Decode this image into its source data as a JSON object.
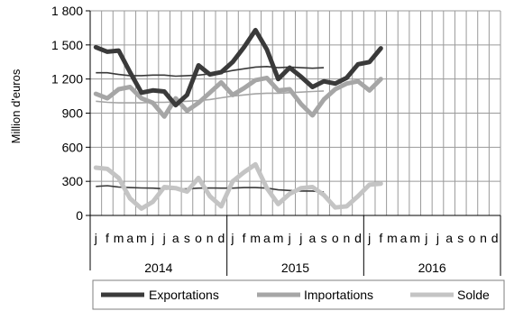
{
  "chart_data": {
    "type": "line",
    "ylabel": "Million d'euros",
    "ylim": [
      0,
      1800
    ],
    "yticks": [
      0,
      300,
      600,
      900,
      1200,
      1500,
      1800
    ],
    "ytick_labels": [
      "0",
      "300",
      "600",
      "900",
      "1 200",
      "1 500",
      "1 800"
    ],
    "month_labels": [
      "j",
      "f",
      "m",
      "a",
      "m",
      "j",
      "j",
      "a",
      "s",
      "o",
      "n",
      "d",
      "j",
      "f",
      "m",
      "a",
      "m",
      "j",
      "j",
      "a",
      "s",
      "o",
      "n",
      "d",
      "j",
      "f",
      "m",
      "a",
      "m",
      "j",
      "j",
      "a",
      "s",
      "o",
      "n",
      "d"
    ],
    "years": [
      "2014",
      "2015",
      "2016"
    ],
    "grid": true,
    "legend_position": "bottom",
    "colors": {
      "exportations": "#3a3a3a",
      "importations": "#a6a6a6",
      "solde": "#c4c4c4",
      "trend_export": "#3a3a3a",
      "trend_import": "#a6a6a6",
      "trend_solde": "#3a3a3a",
      "grid": "#9a9a9a"
    },
    "series": [
      {
        "name": "Exportations",
        "values": [
          1480,
          1440,
          1450,
          1260,
          1080,
          1100,
          1090,
          970,
          1060,
          1320,
          1240,
          1260,
          1350,
          1480,
          1630,
          1460,
          1200,
          1300,
          1220,
          1130,
          1180,
          1160,
          1210,
          1330,
          1350,
          1470
        ]
      },
      {
        "name": "Importations",
        "values": [
          1070,
          1030,
          1110,
          1130,
          1030,
          990,
          870,
          1030,
          920,
          990,
          1080,
          1170,
          1060,
          1120,
          1190,
          1210,
          1100,
          1110,
          980,
          880,
          1020,
          1110,
          1160,
          1180,
          1100,
          1200
        ]
      },
      {
        "name": "Solde",
        "values": [
          420,
          410,
          330,
          150,
          60,
          120,
          250,
          240,
          210,
          330,
          170,
          80,
          300,
          380,
          450,
          240,
          100,
          190,
          240,
          250,
          180,
          70,
          80,
          170,
          270,
          280
        ]
      }
    ],
    "trend_series": [
      {
        "values": [
          1255,
          1255,
          1240,
          1230,
          1230,
          1235,
          1235,
          1225,
          1230,
          1235,
          1245,
          1255,
          1275,
          1290,
          1305,
          1310,
          1300,
          1305,
          1300,
          1295,
          1300
        ]
      },
      {
        "values": [
          1005,
          995,
          990,
          990,
          990,
          995,
          995,
          1000,
          1005,
          1010,
          1020,
          1035,
          1050,
          1060,
          1070,
          1075,
          1075,
          1080,
          1085,
          1090,
          1095
        ]
      },
      {
        "values": [
          255,
          262,
          250,
          245,
          242,
          240,
          235,
          228,
          235,
          240,
          242,
          240,
          240,
          245,
          245,
          240,
          225,
          220,
          215,
          215,
          205
        ]
      }
    ]
  }
}
